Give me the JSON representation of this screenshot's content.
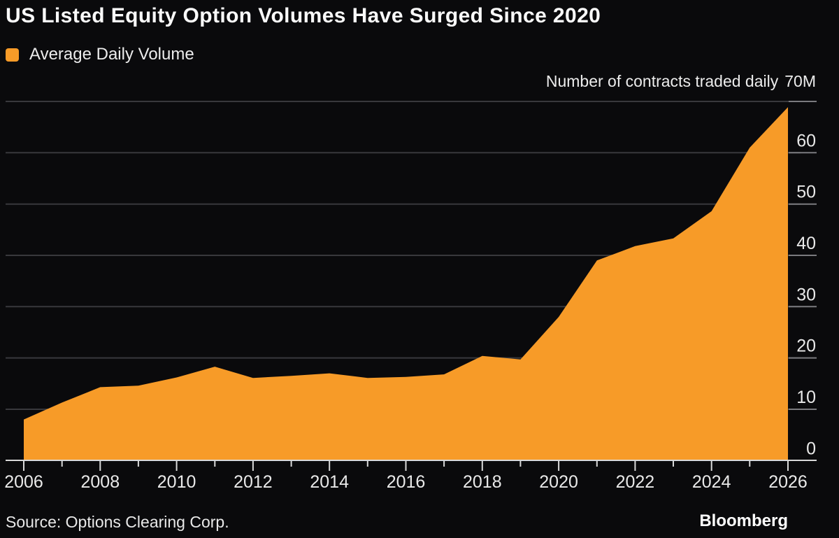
{
  "header": {
    "title": "US Listed Equity Option Volumes Have Surged Since 2020"
  },
  "footer": {
    "source": "Source: Options Clearing Corp.",
    "brand": "Bloomberg"
  },
  "chart_data": {
    "type": "area",
    "title": "US Listed Equity Option Volumes Have Surged Since 2020",
    "axis_note": "Number of contracts traded daily",
    "y_top_tick_label": "70M",
    "series": [
      {
        "name": "Average Daily Volume",
        "color": "#f79b28",
        "x": [
          2006,
          2007,
          2008,
          2009,
          2010,
          2011,
          2012,
          2013,
          2014,
          2015,
          2016,
          2017,
          2018,
          2019,
          2020,
          2021,
          2022,
          2023,
          2024,
          2025,
          2026
        ],
        "values": [
          8,
          11.3,
          14.3,
          14.6,
          16.2,
          18.3,
          16.1,
          16.5,
          17,
          16.1,
          16.3,
          16.8,
          20.4,
          19.7,
          28,
          39,
          41.8,
          43.3,
          48.6,
          61,
          68.9
        ]
      }
    ],
    "xlim": [
      2006,
      2026
    ],
    "ylim": [
      0,
      70
    ],
    "x_tick_labels": [
      "2006",
      "2008",
      "2010",
      "2012",
      "2014",
      "2016",
      "2018",
      "2020",
      "2022",
      "2024",
      "2026"
    ],
    "y_tick_labels": [
      "0",
      "10",
      "20",
      "30",
      "40",
      "50",
      "60"
    ],
    "y_tick_step": 10,
    "grid": "horizontal",
    "legend_position": "top-left",
    "colors": {
      "background": "#0a0a0c",
      "gridline": "#38383c",
      "right_tick": "#7a7a7e",
      "axis_line": "#d9d9d9",
      "text": "#e9e9e9"
    }
  }
}
